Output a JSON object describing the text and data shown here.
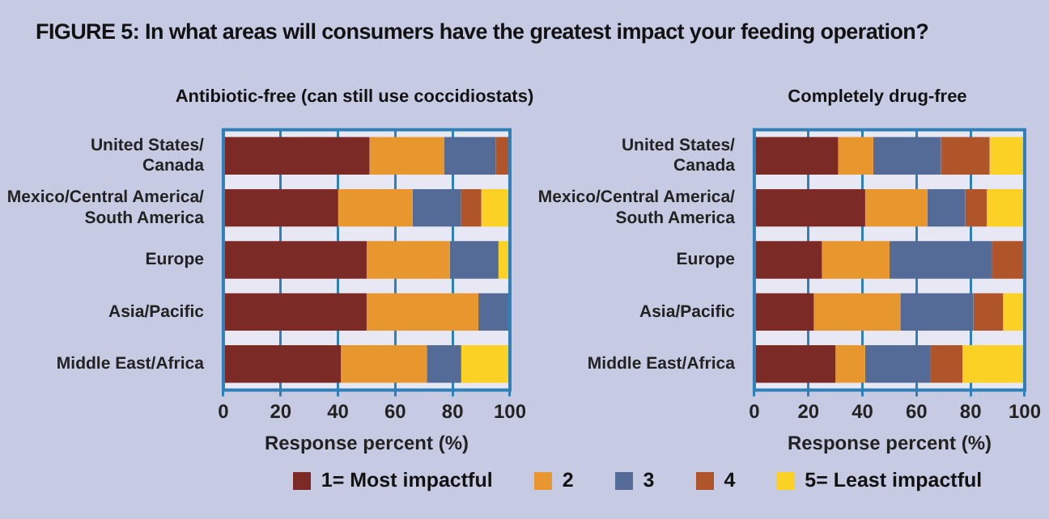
{
  "chart_data": [
    {
      "type": "bar",
      "orientation": "horizontal",
      "stacked": true,
      "title": "FIGURE 5:  In what areas will consumers have the greatest impact your feeding operation?",
      "subtitle": "Antibiotic-free (can still use coccidiostats)",
      "xlabel": "Response percent (%)",
      "categories": [
        "United States/ Canada",
        "Mexico/Central America/ South America",
        "Europe",
        "Asia/Pacific",
        "Middle East/Africa"
      ],
      "xlim": [
        0,
        100
      ],
      "xticks": [
        0,
        20,
        40,
        60,
        80,
        100
      ],
      "grid": "x",
      "legend": "bottom",
      "series": [
        {
          "name": "1= Most impactful",
          "color": "#7b2a26",
          "values": [
            51,
            40,
            50,
            50,
            41
          ]
        },
        {
          "name": "2",
          "color": "#e8962e",
          "values": [
            26,
            26,
            29,
            39,
            30
          ]
        },
        {
          "name": "3",
          "color": "#536b96",
          "values": [
            18,
            17,
            17,
            11,
            12
          ]
        },
        {
          "name": "4",
          "color": "#b0552a",
          "values": [
            5,
            7,
            0,
            0,
            0
          ]
        },
        {
          "name": "5= Least impactful",
          "color": "#fcd126",
          "values": [
            0,
            10,
            4,
            0,
            17
          ]
        }
      ]
    },
    {
      "type": "bar",
      "orientation": "horizontal",
      "stacked": true,
      "title": "Completely drug-free",
      "xlabel": "Response percent (%)",
      "categories": [
        "United States/ Canada",
        "Mexico/Central America/ South America",
        "Europe",
        "Asia/Pacific",
        "Middle East/Africa"
      ],
      "xlim": [
        0,
        100
      ],
      "xticks": [
        0,
        20,
        40,
        60,
        80,
        100
      ],
      "grid": "x",
      "series": [
        {
          "color": "#7b2a26",
          "values": [
            31,
            41,
            25,
            22,
            30
          ]
        },
        {
          "color": "#e8962e",
          "values": [
            13,
            23,
            25,
            32,
            11
          ]
        },
        {
          "color": "#536b96",
          "values": [
            25,
            14,
            38,
            27,
            24
          ]
        },
        {
          "color": "#b0552a",
          "values": [
            18,
            8,
            12,
            11,
            12
          ]
        },
        {
          "color": "#fcd126",
          "values": [
            13,
            14,
            0,
            8,
            23
          ]
        }
      ]
    }
  ]
}
